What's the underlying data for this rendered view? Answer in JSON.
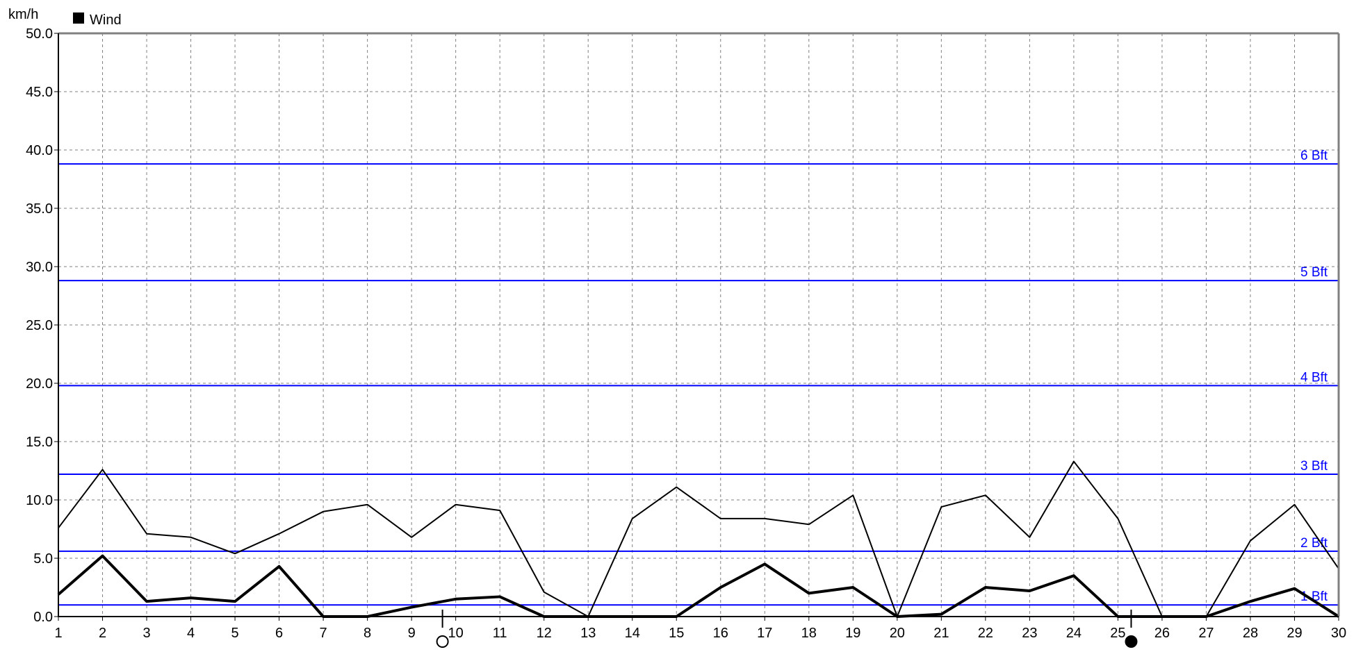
{
  "chart_data": {
    "type": "line",
    "y_unit": "km/h",
    "legend": {
      "label": "Wind",
      "placement": "top-left",
      "color": "#000000"
    },
    "x": [
      1,
      2,
      3,
      4,
      5,
      6,
      7,
      8,
      9,
      10,
      11,
      12,
      13,
      14,
      15,
      16,
      17,
      18,
      19,
      20,
      21,
      22,
      23,
      24,
      25,
      26,
      27,
      28,
      29,
      30
    ],
    "xlim": [
      1,
      30
    ],
    "ylim": [
      0,
      50
    ],
    "yticks": [
      0,
      5,
      10,
      15,
      20,
      25,
      30,
      35,
      40,
      45,
      50
    ],
    "ytick_labels": [
      "0.0",
      "5.0",
      "10.0",
      "15.0",
      "20.0",
      "25.0",
      "30.0",
      "35.0",
      "40.0",
      "45.0",
      "50.0"
    ],
    "xtick_labels": [
      "1",
      "2",
      "3",
      "4",
      "5",
      "6",
      "7",
      "8",
      "9",
      "10",
      "11",
      "12",
      "13",
      "14",
      "15",
      "16",
      "17",
      "18",
      "19",
      "20",
      "21",
      "22",
      "23",
      "24",
      "25",
      "26",
      "27",
      "28",
      "29",
      "30"
    ],
    "grid": true,
    "series": [
      {
        "values": [
          7.6,
          12.6,
          7.1,
          6.8,
          5.4,
          7.1,
          9.0,
          9.6,
          6.8,
          9.6,
          9.1,
          2.1,
          0.0,
          8.4,
          11.1,
          8.4,
          8.4,
          7.9,
          10.4,
          0.0,
          9.4,
          10.4,
          6.8,
          13.3,
          8.4,
          0.0,
          0.0,
          6.5,
          9.6,
          4.1
        ],
        "color": "#000000",
        "width": 2
      },
      {
        "values": [
          1.9,
          5.2,
          1.3,
          1.6,
          1.3,
          4.3,
          0.0,
          0.0,
          0.8,
          1.5,
          1.7,
          0.0,
          0.0,
          0.0,
          0.0,
          2.5,
          4.5,
          2.0,
          2.5,
          0.0,
          0.2,
          2.5,
          2.2,
          3.5,
          0.0,
          0.0,
          0.0,
          1.3,
          2.4,
          0.0
        ],
        "color": "#000000",
        "width": 4
      }
    ],
    "reference_lines": [
      {
        "label": "1 Bft",
        "value": 1.0
      },
      {
        "label": "2 Bft",
        "value": 5.6
      },
      {
        "label": "3 Bft",
        "value": 12.2
      },
      {
        "label": "4 Bft",
        "value": 19.8
      },
      {
        "label": "5 Bft",
        "value": 28.8
      },
      {
        "label": "6 Bft",
        "value": 38.8
      }
    ],
    "reference_color": "#0000ff",
    "moon_phases": [
      {
        "day": 9.7,
        "phase": "full-moon-icon"
      },
      {
        "day": 25.3,
        "phase": "new-moon-icon"
      }
    ]
  }
}
